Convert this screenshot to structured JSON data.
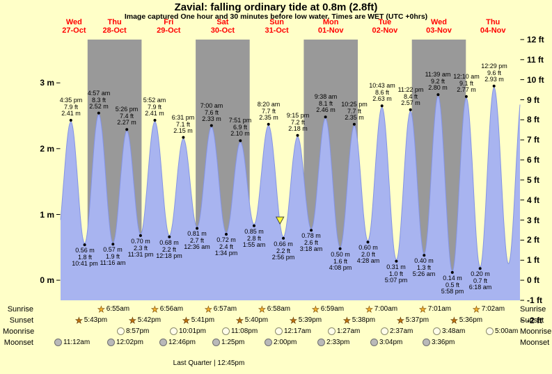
{
  "title": "Zavial: falling  ordinary tide at 0.8m (2.8ft)",
  "subtitle": "Image captured One hour and 30 minutes before low water. Times are WET (UTC +0hrs)",
  "colors": {
    "background": "#ffffc8",
    "band_gray": "#999999",
    "tide_fill": "#a8b4f0",
    "tide_edge": "#8494e4",
    "day_label": "#ff0000",
    "marker_fill": "#ffff33"
  },
  "days": [
    {
      "name": "Wed",
      "date": "27-Oct"
    },
    {
      "name": "Thu",
      "date": "28-Oct"
    },
    {
      "name": "Fri",
      "date": "29-Oct"
    },
    {
      "name": "Sat",
      "date": "30-Oct"
    },
    {
      "name": "Sun",
      "date": "31-Oct"
    },
    {
      "name": "Mon",
      "date": "01-Nov"
    },
    {
      "name": "Tue",
      "date": "02-Nov"
    },
    {
      "name": "Wed",
      "date": "03-Nov"
    },
    {
      "name": "Thu",
      "date": "04-Nov"
    }
  ],
  "y_axis_left": {
    "labels": [
      "3 m",
      "2 m",
      "1 m",
      "0 m"
    ],
    "values": [
      3,
      2,
      1,
      0
    ]
  },
  "y_axis_right": {
    "labels": [
      "12 ft",
      "11 ft",
      "10 ft",
      "9 ft",
      "8 ft",
      "7 ft",
      "6 ft",
      "5 ft",
      "4 ft",
      "3 ft",
      "2 ft",
      "1 ft",
      "0 ft",
      "-1 ft",
      "-2 ft"
    ],
    "values": [
      12,
      11,
      10,
      9,
      8,
      7,
      6,
      5,
      4,
      3,
      2,
      1,
      0,
      -1,
      -2
    ]
  },
  "chart_data": {
    "type": "area",
    "title": "Zavial tide height over time",
    "ylabel_left": "m",
    "ylabel_right": "ft",
    "ylim_ft": [
      -2,
      12
    ],
    "x_range_hours": {
      "start": 12,
      "end": 216
    },
    "highs": [
      {
        "time": "4:35 pm",
        "ft": "7.9 ft",
        "m": "2.41 m",
        "t": 16.583,
        "height_m": 2.41
      },
      {
        "time": "4:57 am",
        "ft": "8.3 ft",
        "m": "2.52 m",
        "t": 28.95,
        "height_m": 2.52
      },
      {
        "time": "5:26 pm",
        "ft": "7.4 ft",
        "m": "2.27 m",
        "t": 41.433,
        "height_m": 2.27
      },
      {
        "time": "5:52 am",
        "ft": "7.9 ft",
        "m": "2.41 m",
        "t": 53.867,
        "height_m": 2.41
      },
      {
        "time": "6:31 pm",
        "ft": "7.1 ft",
        "m": "2.15 m",
        "t": 66.517,
        "height_m": 2.15
      },
      {
        "time": "7:00 am",
        "ft": "7.6 ft",
        "m": "2.33 m",
        "t": 79.0,
        "height_m": 2.33
      },
      {
        "time": "7:51 pm",
        "ft": "6.9 ft",
        "m": "2.10 m",
        "t": 91.85,
        "height_m": 2.1
      },
      {
        "time": "8:20 am",
        "ft": "7.7 ft",
        "m": "2.35 m",
        "t": 104.333,
        "height_m": 2.35
      },
      {
        "time": "9:15 pm",
        "ft": "7.2 ft",
        "m": "2.18 m",
        "t": 117.25,
        "height_m": 2.18
      },
      {
        "time": "9:38 am",
        "ft": "8.1 ft",
        "m": "2.46 m",
        "t": 129.633,
        "height_m": 2.46
      },
      {
        "time": "10:25 pm",
        "ft": "7.7 ft",
        "m": "2.35 m",
        "t": 142.417,
        "height_m": 2.35
      },
      {
        "time": "10:43 am",
        "ft": "8.6 ft",
        "m": "2.63 m",
        "t": 154.717,
        "height_m": 2.63
      },
      {
        "time": "11:22 pm",
        "ft": "8.4 ft",
        "m": "2.57 m",
        "t": 167.367,
        "height_m": 2.57
      },
      {
        "time": "11:39 am",
        "ft": "9.2 ft",
        "m": "2.80 m",
        "t": 179.65,
        "height_m": 2.8
      },
      {
        "time": "12:10 am",
        "ft": "9.1 ft",
        "m": "2.77 m",
        "t": 192.167,
        "height_m": 2.77
      },
      {
        "time": "12:29 pm",
        "ft": "9.6 ft",
        "m": "2.93 m",
        "t": 204.483,
        "height_m": 2.93
      }
    ],
    "lows": [
      {
        "m": "0.56 m",
        "ft": "1.8 ft",
        "time": "10:41 pm",
        "t": 22.683,
        "height_m": 0.56
      },
      {
        "m": "0.57 m",
        "ft": "1.9 ft",
        "time": "11:16 am",
        "t": 35.267,
        "height_m": 0.57
      },
      {
        "m": "0.70 m",
        "ft": "2.3 ft",
        "time": "11:31 pm",
        "t": 47.517,
        "height_m": 0.7
      },
      {
        "m": "0.68 m",
        "ft": "2.2 ft",
        "time": "12:18 pm",
        "t": 60.3,
        "height_m": 0.68
      },
      {
        "m": "0.81 m",
        "ft": "2.7 ft",
        "time": "12:36 am",
        "t": 72.6,
        "height_m": 0.81
      },
      {
        "m": "0.72 m",
        "ft": "2.4 ft",
        "time": "1:34 pm",
        "t": 85.567,
        "height_m": 0.72
      },
      {
        "m": "0.85 m",
        "ft": "2.8 ft",
        "time": "1:55 am",
        "t": 97.917,
        "height_m": 0.85
      },
      {
        "m": "0.66 m",
        "ft": "2.2 ft",
        "time": "2:56 pm",
        "t": 110.933,
        "height_m": 0.66
      },
      {
        "m": "0.78 m",
        "ft": "2.6 ft",
        "time": "3:18 am",
        "t": 123.3,
        "height_m": 0.78
      },
      {
        "m": "0.50 m",
        "ft": "1.6 ft",
        "time": "4:08 pm",
        "t": 136.133,
        "height_m": 0.5
      },
      {
        "m": "0.60 m",
        "ft": "2.0 ft",
        "time": "4:28 am",
        "t": 148.467,
        "height_m": 0.6
      },
      {
        "m": "0.31 m",
        "ft": "1.0 ft",
        "time": "5:07 pm",
        "t": 161.117,
        "height_m": 0.31
      },
      {
        "m": "0.40 m",
        "ft": "1.3 ft",
        "time": "5:26 am",
        "t": 173.433,
        "height_m": 0.4
      },
      {
        "m": "0.14 m",
        "ft": "0.5 ft",
        "time": "5:58 pm",
        "t": 185.967,
        "height_m": 0.14
      },
      {
        "m": "0.20 m",
        "ft": "0.7 ft",
        "time": "6:18 am",
        "t": 198.3,
        "height_m": 0.2
      }
    ],
    "marker": {
      "shape": "triangle-down",
      "hours_before_low": 1.5,
      "low_index": 7
    }
  },
  "astro": {
    "rows": [
      {
        "label": "Sunrise",
        "icon": "sunrise-icon",
        "times": [
          "6:55am",
          "6:56am",
          "6:57am",
          "6:58am",
          "6:59am",
          "7:00am",
          "7:01am",
          "7:02am"
        ]
      },
      {
        "label": "Sunset",
        "icon": "sunset-icon",
        "times": [
          "5:43pm",
          "5:42pm",
          "5:41pm",
          "5:40pm",
          "5:39pm",
          "5:38pm",
          "5:37pm",
          "5:36pm"
        ]
      },
      {
        "label": "Moonrise",
        "icon": "moonrise-icon",
        "times": [
          "8:57pm",
          "10:01pm",
          "11:08pm",
          "12:17am",
          "1:27am",
          "2:37am",
          "3:48am",
          "5:00am"
        ]
      },
      {
        "label": "Moonset",
        "icon": "moonset-icon",
        "times": [
          "11:12am",
          "12:02pm",
          "12:46pm",
          "1:25pm",
          "2:00pm",
          "2:33pm",
          "3:04pm",
          "3:36pm"
        ]
      }
    ],
    "note": "Last Quarter | 12:45pm"
  }
}
